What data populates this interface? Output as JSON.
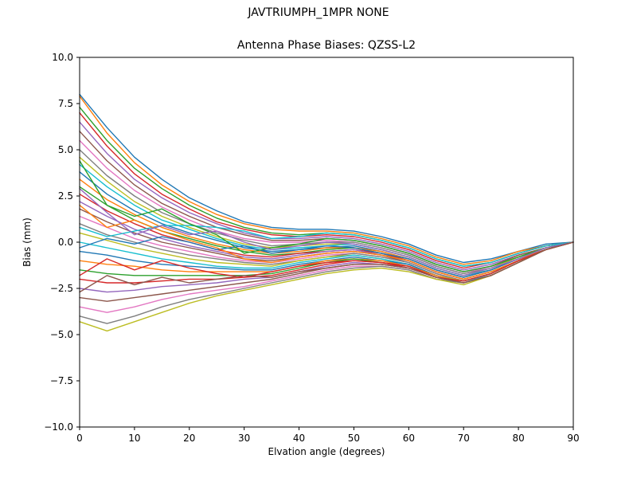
{
  "chart_data": {
    "type": "line",
    "title": "JAVTRIUMPH_1MPR NONE",
    "subtitle": "Antenna Phase Biases: QZSS-L2",
    "xlabel": "Elvation angle (degrees)",
    "ylabel": "Bias (mm)",
    "xlim": [
      0,
      90
    ],
    "ylim": [
      -10.0,
      10.0
    ],
    "grid": false,
    "legend": "none",
    "xticks": [
      0,
      10,
      20,
      30,
      40,
      50,
      60,
      70,
      80,
      90
    ],
    "xtick_labels": [
      "0",
      "10",
      "20",
      "30",
      "40",
      "50",
      "60",
      "70",
      "80",
      "90"
    ],
    "yticks": [
      -10.0,
      -7.5,
      -5.0,
      -2.5,
      0.0,
      2.5,
      5.0,
      7.5,
      10.0
    ],
    "ytick_labels": [
      "−10.0",
      "−7.5",
      "−5.0",
      "−2.5",
      "0.0",
      "2.5",
      "5.0",
      "7.5",
      "10.0"
    ],
    "x": [
      0,
      5,
      10,
      15,
      20,
      25,
      30,
      35,
      40,
      45,
      50,
      55,
      60,
      65,
      70,
      75,
      80,
      85,
      90
    ],
    "palette": [
      "#1f77b4",
      "#ff7f0e",
      "#2ca02c",
      "#d62728",
      "#9467bd",
      "#8c564b",
      "#e377c2",
      "#7f7f7f",
      "#bcbd22",
      "#17becf"
    ],
    "series": [
      [
        8.0,
        6.2,
        4.6,
        3.4,
        2.4,
        1.7,
        1.1,
        0.8,
        0.7,
        0.7,
        0.6,
        0.3,
        -0.1,
        -0.7,
        -1.1,
        -0.9,
        -0.5,
        -0.1,
        0.0
      ],
      [
        7.9,
        5.9,
        4.3,
        3.1,
        2.2,
        1.5,
        1.0,
        0.7,
        0.6,
        0.6,
        0.5,
        0.2,
        -0.2,
        -0.8,
        -1.2,
        -1.0,
        -0.5,
        -0.2,
        0.0
      ],
      [
        7.3,
        5.5,
        4.0,
        2.9,
        2.0,
        1.3,
        0.8,
        0.5,
        0.4,
        0.5,
        0.4,
        0.1,
        -0.3,
        -0.9,
        -1.3,
        -1.1,
        -0.6,
        -0.2,
        0.0
      ],
      [
        7.0,
        5.2,
        3.7,
        2.6,
        1.8,
        1.1,
        0.7,
        0.4,
        0.3,
        0.4,
        0.3,
        0.0,
        -0.4,
        -1.0,
        -1.4,
        -1.1,
        -0.6,
        -0.2,
        0.0
      ],
      [
        6.5,
        4.8,
        3.4,
        2.4,
        1.6,
        1.0,
        0.5,
        0.2,
        0.2,
        0.3,
        0.2,
        -0.1,
        -0.5,
        -1.1,
        -1.5,
        -1.2,
        -0.7,
        -0.3,
        0.0
      ],
      [
        6.0,
        4.4,
        3.1,
        2.1,
        1.4,
        0.8,
        0.4,
        0.1,
        0.1,
        0.2,
        0.1,
        -0.2,
        -0.6,
        -1.2,
        -1.6,
        -1.3,
        -0.7,
        -0.3,
        0.0
      ],
      [
        5.5,
        4.0,
        2.8,
        1.9,
        1.2,
        0.6,
        0.2,
        0.0,
        0.0,
        0.1,
        0.0,
        -0.3,
        -0.7,
        -1.3,
        -1.7,
        -1.3,
        -0.8,
        -0.3,
        0.0
      ],
      [
        5.0,
        3.6,
        2.5,
        1.6,
        1.0,
        0.5,
        0.1,
        -0.2,
        -0.1,
        0.0,
        0.0,
        -0.3,
        -0.7,
        -1.3,
        -1.7,
        -1.4,
        -0.8,
        -0.3,
        0.0
      ],
      [
        4.6,
        3.3,
        2.2,
        1.4,
        0.8,
        0.3,
        -0.1,
        -0.3,
        -0.2,
        -0.1,
        -0.1,
        -0.4,
        -0.8,
        -1.4,
        -1.8,
        -1.4,
        -0.8,
        -0.3,
        0.0
      ],
      [
        4.2,
        3.0,
        2.0,
        1.2,
        0.7,
        0.2,
        -0.2,
        -0.4,
        -0.3,
        -0.2,
        -0.1,
        -0.4,
        -0.8,
        -1.4,
        -1.8,
        -1.5,
        -0.9,
        -0.4,
        0.0
      ],
      [
        3.8,
        2.6,
        1.7,
        1.0,
        0.5,
        0.1,
        -0.3,
        -0.5,
        -0.4,
        -0.3,
        -0.2,
        -0.5,
        -0.9,
        -1.5,
        -1.9,
        -1.5,
        -0.9,
        -0.4,
        0.0
      ],
      [
        3.4,
        2.3,
        1.5,
        0.8,
        0.3,
        -0.1,
        -0.4,
        -0.6,
        -0.5,
        -0.3,
        -0.3,
        -0.5,
        -0.9,
        -1.5,
        -1.9,
        -1.5,
        -0.9,
        -0.4,
        0.0
      ],
      [
        3.0,
        2.0,
        1.2,
        0.6,
        0.2,
        -0.2,
        -0.5,
        -0.7,
        -0.6,
        -0.4,
        -0.3,
        -0.6,
        -1.0,
        -1.6,
        -2.0,
        -1.6,
        -1.0,
        -0.4,
        0.0
      ],
      [
        2.6,
        1.7,
        1.0,
        0.4,
        0.0,
        -0.4,
        -0.7,
        -0.8,
        -0.6,
        -0.5,
        -0.4,
        -0.6,
        -1.0,
        -1.6,
        -2.0,
        -1.6,
        -1.0,
        -0.4,
        0.0
      ],
      [
        2.2,
        1.4,
        0.7,
        0.2,
        -0.2,
        -0.5,
        -0.8,
        -0.9,
        -0.7,
        -0.5,
        -0.4,
        -0.7,
        -1.0,
        -1.6,
        -2.0,
        -1.6,
        -1.0,
        -0.4,
        0.0
      ],
      [
        1.8,
        1.1,
        0.5,
        0.0,
        -0.3,
        -0.6,
        -0.9,
        -1.0,
        -0.8,
        -0.6,
        -0.5,
        -0.7,
        -1.1,
        -1.7,
        -2.1,
        -1.7,
        -1.0,
        -0.4,
        0.0
      ],
      [
        1.4,
        0.8,
        0.2,
        -0.2,
        -0.5,
        -0.8,
        -1.0,
        -1.1,
        -0.9,
        -0.7,
        -0.6,
        -0.8,
        -1.1,
        -1.7,
        -2.1,
        -1.7,
        -1.0,
        -0.4,
        0.0
      ],
      [
        1.0,
        0.4,
        0.0,
        -0.4,
        -0.7,
        -0.9,
        -1.1,
        -1.2,
        -1.0,
        -0.8,
        -0.6,
        -0.8,
        -1.1,
        -1.7,
        -2.1,
        -1.7,
        -1.0,
        -0.4,
        0.0
      ],
      [
        0.5,
        0.1,
        -0.3,
        -0.6,
        -0.9,
        -1.1,
        -1.2,
        -1.3,
        -1.0,
        -0.8,
        -0.7,
        -0.9,
        -1.2,
        -1.8,
        -2.1,
        -1.7,
        -1.0,
        -0.4,
        0.0
      ],
      [
        0.0,
        -0.3,
        -0.6,
        -0.9,
        -1.1,
        -1.3,
        -1.4,
        -1.4,
        -1.1,
        -0.9,
        -0.7,
        -0.9,
        -1.2,
        -1.8,
        -2.2,
        -1.7,
        -1.0,
        -0.4,
        0.0
      ],
      [
        -0.5,
        -0.7,
        -1.0,
        -1.2,
        -1.3,
        -1.4,
        -1.5,
        -1.5,
        -1.2,
        -1.0,
        -0.8,
        -1.0,
        -1.2,
        -1.8,
        -2.2,
        -1.8,
        -1.1,
        -0.4,
        0.0
      ],
      [
        -1.0,
        -1.2,
        -1.3,
        -1.5,
        -1.6,
        -1.6,
        -1.6,
        -1.6,
        -1.3,
        -1.0,
        -0.9,
        -1.0,
        -1.3,
        -1.8,
        -2.2,
        -1.8,
        -1.1,
        -0.4,
        0.0
      ],
      [
        -1.5,
        -1.7,
        -1.8,
        -1.8,
        -1.8,
        -1.8,
        -1.8,
        -1.7,
        -1.4,
        -1.1,
        -0.9,
        -1.1,
        -1.3,
        -1.9,
        -2.2,
        -1.8,
        -1.1,
        -0.4,
        0.0
      ],
      [
        -2.0,
        -2.2,
        -2.2,
        -2.1,
        -2.0,
        -2.0,
        -1.9,
        -1.8,
        -1.5,
        -1.2,
        -1.0,
        -1.1,
        -1.3,
        -1.9,
        -2.2,
        -1.8,
        -1.1,
        -0.4,
        0.0
      ],
      [
        -2.5,
        -2.7,
        -2.6,
        -2.4,
        -2.3,
        -2.2,
        -2.0,
        -1.9,
        -1.6,
        -1.3,
        -1.1,
        -1.2,
        -1.4,
        -1.9,
        -2.2,
        -1.8,
        -1.1,
        -0.4,
        0.0
      ],
      [
        -3.0,
        -3.2,
        -3.0,
        -2.8,
        -2.6,
        -2.4,
        -2.2,
        -2.0,
        -1.7,
        -1.4,
        -1.2,
        -1.2,
        -1.4,
        -1.9,
        -2.2,
        -1.8,
        -1.1,
        -0.4,
        0.0
      ],
      [
        -3.5,
        -3.8,
        -3.5,
        -3.1,
        -2.8,
        -2.6,
        -2.4,
        -2.1,
        -1.8,
        -1.5,
        -1.3,
        -1.3,
        -1.5,
        -2.0,
        -2.2,
        -1.8,
        -1.1,
        -0.4,
        0.0
      ],
      [
        -4.0,
        -4.4,
        -4.0,
        -3.5,
        -3.1,
        -2.8,
        -2.5,
        -2.2,
        -1.9,
        -1.6,
        -1.4,
        -1.3,
        -1.5,
        -2.0,
        -2.2,
        -1.8,
        -1.1,
        -0.4,
        0.0
      ],
      [
        -4.3,
        -4.8,
        -4.3,
        -3.8,
        -3.3,
        -2.9,
        -2.6,
        -2.3,
        -2.0,
        -1.7,
        -1.5,
        -1.4,
        -1.6,
        -2.0,
        -2.3,
        -1.8,
        -1.1,
        -0.4,
        0.0
      ],
      [
        0.8,
        0.3,
        0.6,
        0.9,
        0.9,
        0.8,
        0.6,
        0.2,
        0.3,
        0.5,
        0.4,
        0.1,
        -0.3,
        -0.9,
        -1.3,
        -1.1,
        -0.6,
        -0.2,
        0.0
      ],
      [
        -0.3,
        0.2,
        -0.1,
        0.3,
        0.0,
        -0.4,
        -0.2,
        -0.6,
        -0.4,
        -0.2,
        -0.3,
        -0.6,
        -0.9,
        -1.5,
        -1.9,
        -1.5,
        -0.9,
        -0.3,
        0.0
      ],
      [
        2.0,
        0.8,
        1.2,
        0.6,
        0.1,
        -0.3,
        -0.9,
        -1.1,
        -0.8,
        -0.6,
        -0.5,
        -0.7,
        -1.0,
        -1.6,
        -2.0,
        -1.6,
        -1.0,
        -0.4,
        0.0
      ],
      [
        4.4,
        2.0,
        1.4,
        1.8,
        1.0,
        0.4,
        -0.6,
        -0.3,
        -0.1,
        0.2,
        0.1,
        -0.2,
        -0.6,
        -1.2,
        -1.6,
        -1.3,
        -0.8,
        -0.3,
        0.0
      ],
      [
        -1.8,
        -0.9,
        -1.5,
        -1.0,
        -1.4,
        -1.7,
        -1.9,
        -1.6,
        -1.3,
        -1.1,
        -1.0,
        -1.1,
        -1.4,
        -1.9,
        -2.1,
        -1.7,
        -1.0,
        -0.4,
        0.0
      ],
      [
        2.9,
        1.6,
        0.4,
        0.9,
        0.4,
        0.6,
        0.0,
        -0.4,
        -0.2,
        0.0,
        -0.1,
        -0.4,
        -0.8,
        -1.4,
        -1.8,
        -1.4,
        -0.9,
        -0.3,
        0.0
      ],
      [
        -2.7,
        -1.8,
        -2.3,
        -1.9,
        -2.2,
        -2.0,
        -1.8,
        -1.9,
        -1.6,
        -1.4,
        -1.2,
        -1.2,
        -1.4,
        -1.9,
        -2.2,
        -1.8,
        -1.1,
        -0.4,
        0.0
      ]
    ]
  }
}
